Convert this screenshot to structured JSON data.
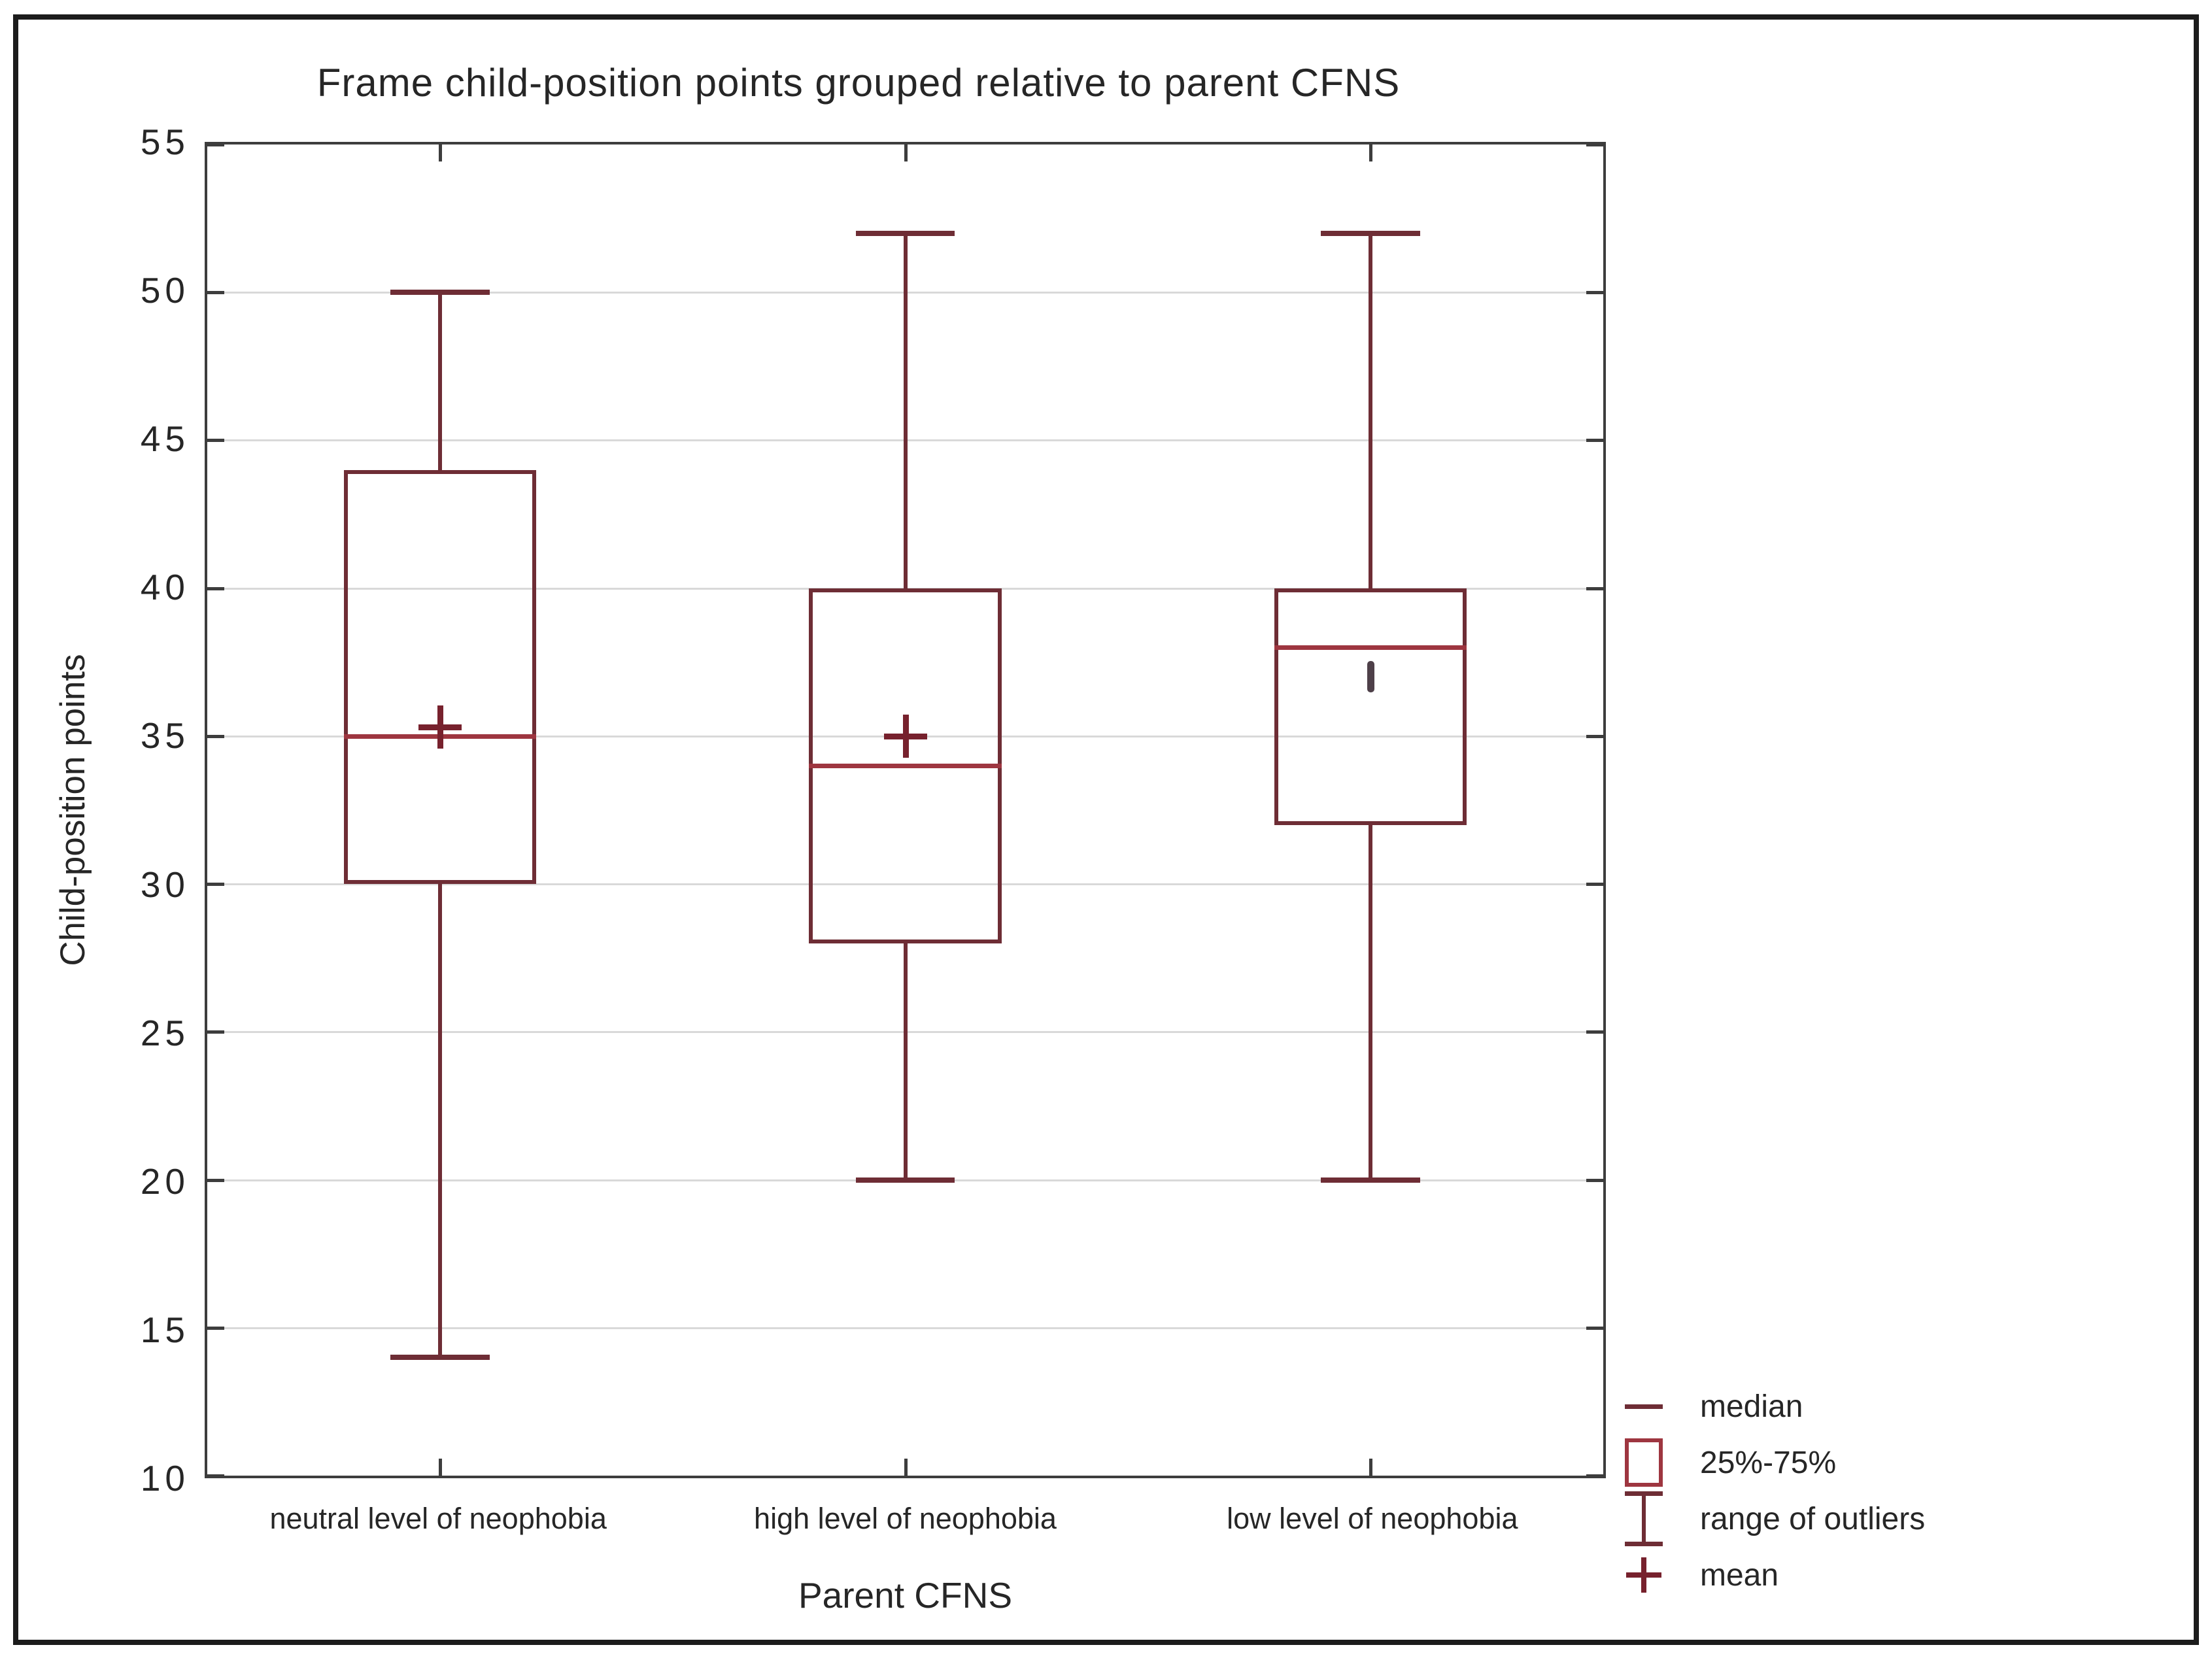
{
  "figure": {
    "title": "Frame child-position points grouped relative to parent CFNS",
    "x_axis_title": "Parent CFNS",
    "y_axis_title": "Child-position points"
  },
  "chart_data": {
    "type": "box",
    "title": "Frame child-position points grouped relative to parent CFNS",
    "xlabel": "Parent CFNS",
    "ylabel": "Child-position points",
    "ylim": [
      10,
      55
    ],
    "y_ticks": [
      55,
      50,
      45,
      40,
      35,
      30,
      25,
      20,
      15,
      10
    ],
    "grid": "horizontal gridlines on",
    "legend_position": "bottom-right",
    "categories": [
      "neutral level of neophobia",
      "high level of neophobia",
      "low level of neophobia"
    ],
    "series": [
      {
        "name": "neutral level of neophobia",
        "whisker_low": 14,
        "q1": 30,
        "median": 35,
        "q3": 44,
        "whisker_high": 50,
        "mean": 35.3,
        "mean_marker": "plus"
      },
      {
        "name": "high level of neophobia",
        "whisker_low": 20,
        "q1": 28,
        "median": 34,
        "q3": 40,
        "whisker_high": 52,
        "mean": 35,
        "mean_marker": "plus"
      },
      {
        "name": "low level of neophobia",
        "whisker_low": 20,
        "q1": 32,
        "median": 38,
        "q3": 40,
        "whisker_high": 52,
        "mean": 37,
        "mean_marker": "vline"
      }
    ]
  },
  "legend": {
    "items": [
      {
        "label": "median",
        "symbol": "median-line"
      },
      {
        "label": "25%-75%",
        "symbol": "iqr-box"
      },
      {
        "label": "range of outliers",
        "symbol": "whisker-range"
      },
      {
        "label": "mean",
        "symbol": "mean-plus"
      }
    ]
  },
  "colors": {
    "box_stroke": "#6e2d35",
    "median_line": "#9e3640",
    "mean_marker": "#77212d",
    "gridline": "#d9d9d9",
    "axis_frame": "#3d3d3d",
    "text": "#262626",
    "outer_border": "#1c1c1c",
    "background": "#ffffff"
  }
}
